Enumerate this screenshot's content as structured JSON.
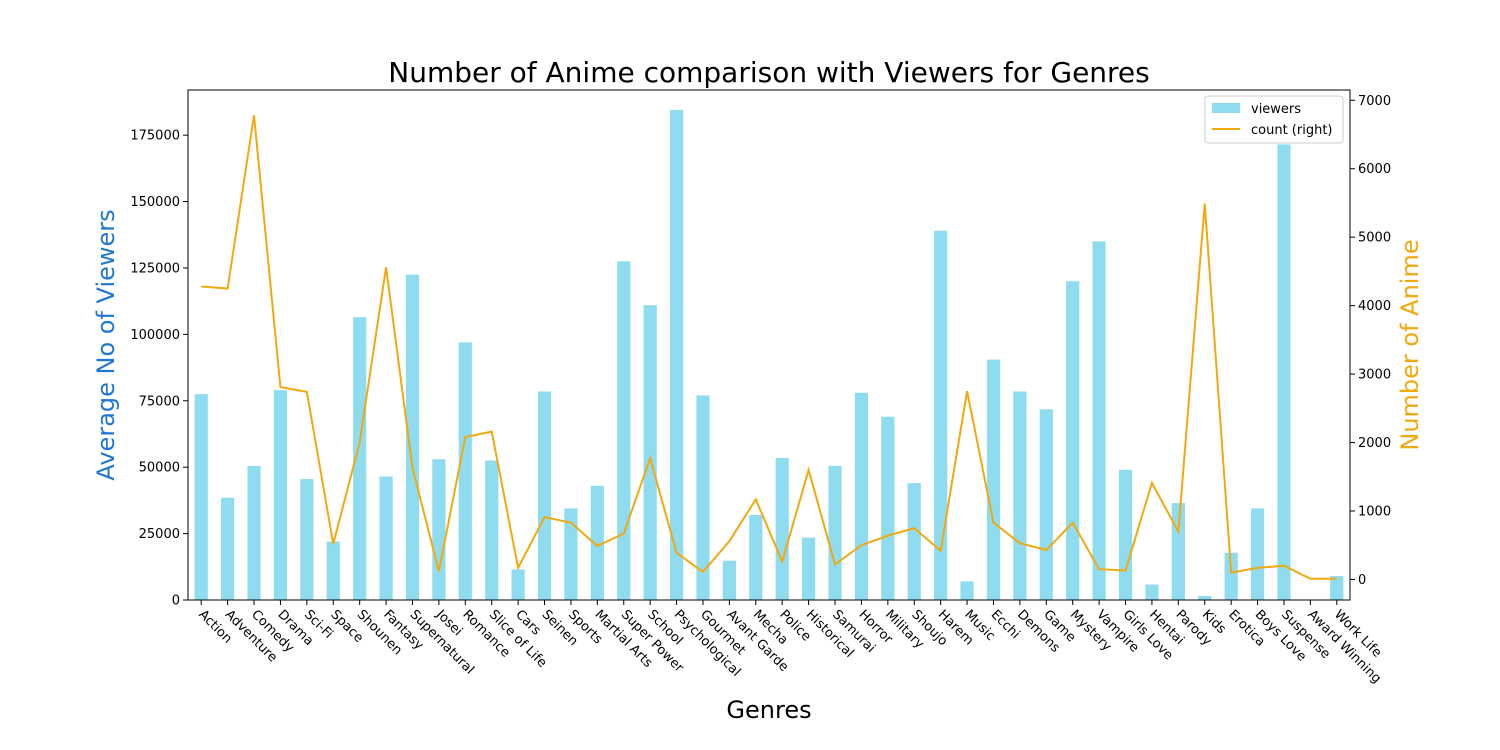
{
  "chart_data": {
    "type": "bar",
    "title": "Number of Anime comparison with Viewers for Genres",
    "xlabel": "Genres",
    "ylabel_left": "Average No of Viewers",
    "ylabel_right": "Number of Anime",
    "ylim_left": [
      0,
      192000
    ],
    "ylim_right": [
      -300,
      7150
    ],
    "yticks_left": [
      0,
      25000,
      50000,
      75000,
      100000,
      125000,
      150000,
      175000
    ],
    "yticks_right": [
      0,
      1000,
      2000,
      3000,
      4000,
      5000,
      6000,
      7000
    ],
    "legend_placement": "top-right",
    "colors": {
      "bars": "#8fdcf0",
      "line": "#f2a90f",
      "ylabel_left": "#1f77d4",
      "ylabel_right": "#f2a90f"
    },
    "categories": [
      "Action",
      "Adventure",
      "Comedy",
      "Drama",
      "Sci-Fi",
      "Space",
      "Shounen",
      "Fantasy",
      "Supernatural",
      "Josei",
      "Romance",
      "Slice of Life",
      "Cars",
      "Seinen",
      "Sports",
      "Martial Arts",
      "Super Power",
      "School",
      "Psychological",
      "Gourmet",
      "Avant Garde",
      "Mecha",
      "Police",
      "Historical",
      "Samurai",
      "Horror",
      "Military",
      "Shoujo",
      "Harem",
      "Music",
      "Ecchi",
      "Demons",
      "Game",
      "Mystery",
      "Vampire",
      "Girls Love",
      "Hentai",
      "Parody",
      "Kids",
      "Erotica",
      "Boys Love",
      "Suspense",
      "Award Winning",
      "Work Life"
    ],
    "series": [
      {
        "name": "viewers",
        "type": "bar",
        "axis": "left",
        "values": [
          77500,
          38500,
          50500,
          79000,
          45500,
          22000,
          106500,
          46500,
          122500,
          53000,
          97000,
          52500,
          11500,
          78500,
          34500,
          43000,
          127500,
          111000,
          184500,
          77000,
          14800,
          32000,
          53500,
          23500,
          50500,
          78000,
          69000,
          44000,
          139000,
          7000,
          90500,
          78500,
          71800,
          120000,
          135000,
          49000,
          5800,
          36500,
          1500,
          17800,
          34500,
          171500,
          0,
          9000
        ]
      },
      {
        "name": "count (right)",
        "type": "line",
        "axis": "right",
        "values": [
          4280,
          4250,
          6780,
          2810,
          2740,
          520,
          2000,
          4560,
          1630,
          120,
          2080,
          2160,
          170,
          910,
          830,
          490,
          670,
          1770,
          390,
          110,
          560,
          1170,
          260,
          1600,
          220,
          500,
          640,
          750,
          420,
          2750,
          830,
          530,
          430,
          830,
          150,
          130,
          1410,
          700,
          5490,
          100,
          170,
          200,
          10,
          10
        ]
      }
    ]
  }
}
